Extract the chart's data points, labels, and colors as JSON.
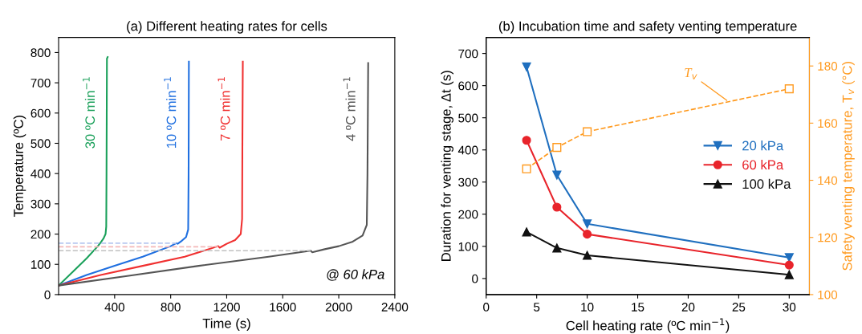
{
  "chart_data": [
    {
      "type": "line",
      "title": "(a) Different heating rates for cells",
      "xlabel": "Time (s)",
      "ylabel": "Temperature (ºC)",
      "xlim": [
        0,
        2400
      ],
      "xticks": [
        400,
        800,
        1200,
        1600,
        2000,
        2400
      ],
      "ylim": [
        0,
        850
      ],
      "yticks": [
        0,
        100,
        200,
        300,
        400,
        500,
        600,
        700,
        800
      ],
      "grid": false,
      "legend": false,
      "line_style": "solid",
      "marker": "none",
      "annotations": [
        "@ 60 kPa"
      ],
      "series": [
        {
          "name": "30 ºC min$^{−1}$",
          "color": "#1aa05a",
          "x": [
            0,
            100,
            200,
            280,
            300,
            320,
            335,
            340,
            342,
            345,
            350
          ],
          "values": [
            30,
            75,
            120,
            160,
            172,
            185,
            200,
            225,
            400,
            780,
            785
          ]
        },
        {
          "name": "10 ºC min$^{−1}$",
          "color": "#1f6fe0",
          "x": [
            0,
            200,
            400,
            600,
            800,
            840,
            850,
            880,
            910,
            925,
            928,
            930
          ],
          "values": [
            30,
            65,
            95,
            125,
            160,
            170,
            168,
            178,
            190,
            215,
            400,
            770
          ]
        },
        {
          "name": "7 ºC min$^{−1}$",
          "color": "#f03030",
          "x": [
            0,
            300,
            600,
            900,
            1140,
            1150,
            1200,
            1260,
            1300,
            1310,
            1312,
            1315
          ],
          "values": [
            30,
            65,
            95,
            125,
            160,
            155,
            168,
            180,
            200,
            250,
            500,
            770
          ]
        },
        {
          "name": "4 ºC min$^{−1}$",
          "color": "#555555",
          "x": [
            0,
            500,
            1000,
            1500,
            1800,
            1810,
            1900,
            2000,
            2100,
            2170,
            2200,
            2205,
            2210
          ],
          "values": [
            30,
            62,
            95,
            125,
            145,
            140,
            150,
            160,
            175,
            195,
            230,
            400,
            765
          ]
        },
        {
          "color": "#b8c8f0",
          "line_style": "dashed",
          "x": [
            0,
            840
          ],
          "values": [
            170,
            170
          ]
        },
        {
          "color": "#f4b8b8",
          "line_style": "dashed",
          "x": [
            0,
            1140
          ],
          "values": [
            158,
            158
          ]
        },
        {
          "color": "#c0c0c0",
          "line_style": "dashed",
          "x": [
            0,
            1800
          ],
          "values": [
            145,
            145
          ]
        }
      ]
    },
    {
      "type": "line",
      "title": "(b) Incubation time and safety venting temperature",
      "xlabel": "Cell heating rate (ºC min$^{−1}$)",
      "ylabel": "Duration for venting stage, Δt (s)",
      "y2label": "Safety venting temperature, T$_{v}$ (°C)",
      "xlim": [
        0,
        32
      ],
      "xticks": [
        0,
        5,
        10,
        15,
        20,
        25,
        30
      ],
      "ylim": [
        -50,
        750
      ],
      "yticks": [
        0,
        100,
        200,
        300,
        400,
        500,
        600,
        700
      ],
      "y2lim": [
        100,
        190
      ],
      "y2ticks": [
        100,
        120,
        140,
        160,
        180
      ],
      "grid": false,
      "legend": "right",
      "line_style": "solid",
      "annotations": [
        {
          "text": "T$_{v}$",
          "x": 24,
          "y": 550
        }
      ],
      "x": [
        4,
        7,
        10,
        30
      ],
      "series": [
        {
          "name": "20 kPa",
          "color": "#1f6fbf",
          "marker": "triangle_down",
          "values": [
            658,
            322,
            170,
            65
          ]
        },
        {
          "name": "60 kPa",
          "color": "#e8242b",
          "marker": "circle",
          "values": [
            430,
            222,
            138,
            42
          ]
        },
        {
          "name": "100 kPa",
          "color": "#111111",
          "marker": "triangle",
          "values": [
            145,
            95,
            72,
            12
          ]
        },
        {
          "color": "#ff9a1f",
          "marker": "square",
          "line_style": "dashed",
          "axis": "y2",
          "values": [
            144,
            151.5,
            157,
            172
          ]
        }
      ]
    }
  ]
}
